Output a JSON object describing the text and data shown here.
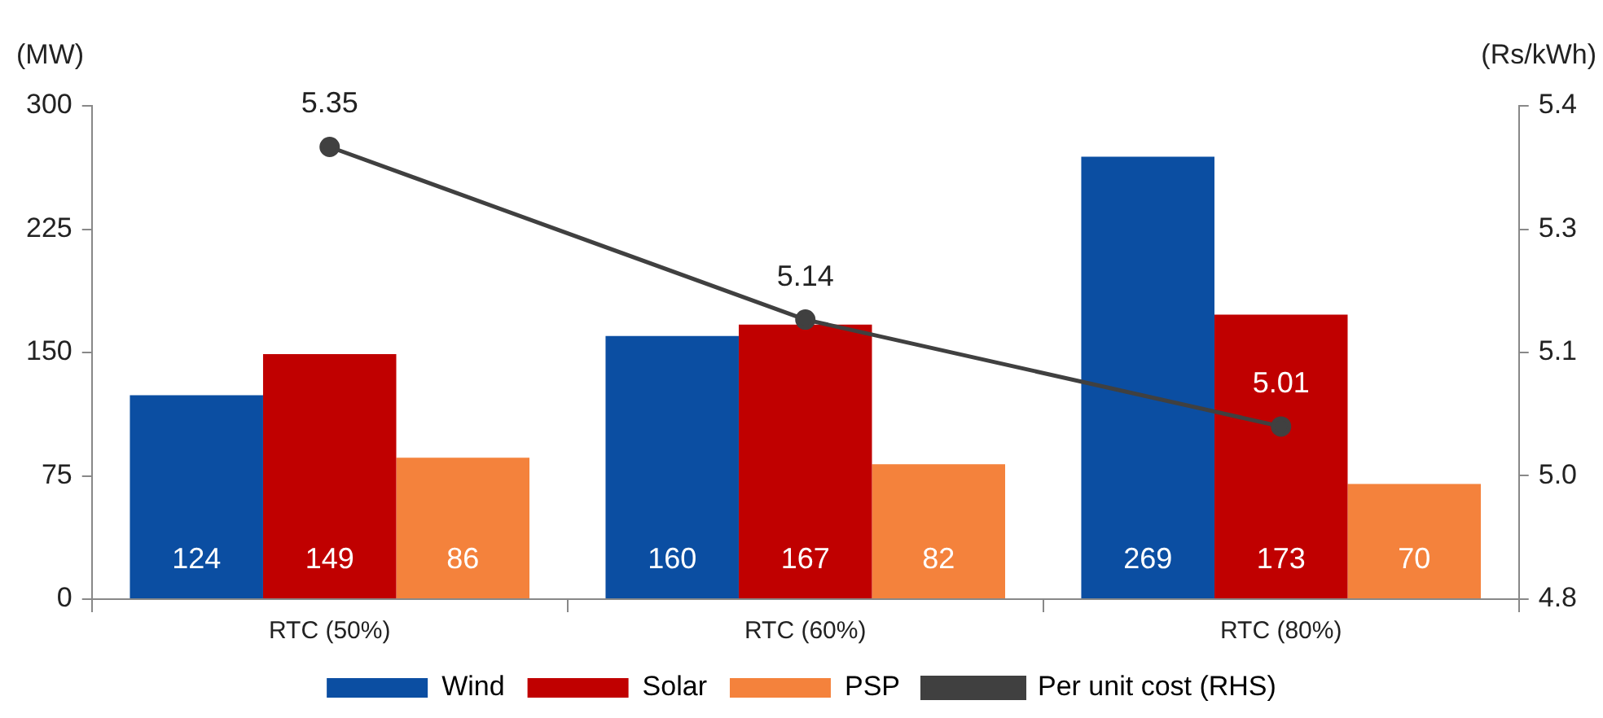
{
  "chart_data": {
    "type": "bar",
    "ylabel": "(MW)",
    "y2label": "(Rs/kWh)",
    "categories": [
      "RTC (50%)",
      "RTC (60%)",
      "RTC (80%)"
    ],
    "series": [
      {
        "name": "Wind",
        "color": "#0b4ea2",
        "values": [
          124,
          160,
          269
        ],
        "value_labels": [
          "124",
          "160",
          "269"
        ]
      },
      {
        "name": "Solar",
        "color": "#c00000",
        "values": [
          149,
          167,
          173
        ],
        "value_labels": [
          "149",
          "167",
          "173"
        ]
      },
      {
        "name": "PSP",
        "color": "#f4823c",
        "values": [
          86,
          82,
          70
        ],
        "value_labels": [
          "86",
          "82",
          "70"
        ]
      },
      {
        "name": "Per unit cost (RHS)",
        "type": "line",
        "axis": "y2",
        "color": "#404040",
        "marker": "circle",
        "values": [
          5.35,
          5.14,
          5.01
        ],
        "value_labels": [
          "5.35",
          "5.14",
          "5.01"
        ]
      }
    ],
    "ylim": [
      0,
      300
    ],
    "yticks": [
      0,
      75,
      150,
      225,
      300
    ],
    "y2lim": [
      4.8,
      5.4
    ],
    "y2ticks": [
      {
        "value": 4.8,
        "label": "4.8"
      },
      {
        "value": 4.95,
        "label": "5.0"
      },
      {
        "value": 5.1,
        "label": "5.1"
      },
      {
        "value": 5.25,
        "label": "5.3"
      },
      {
        "value": 5.4,
        "label": "5.4"
      }
    ],
    "grid": false,
    "legend": "bottom"
  }
}
